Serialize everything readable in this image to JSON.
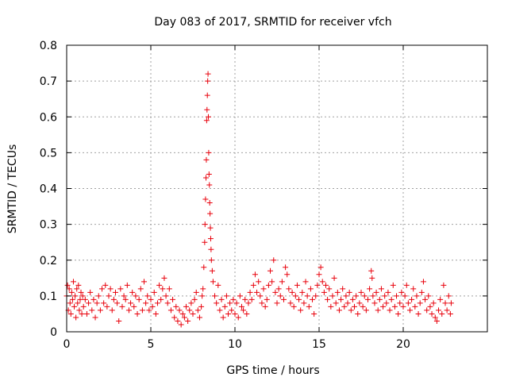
{
  "chart_data": {
    "type": "scatter",
    "title": "Day 083 of 2017, SRMTID for receiver vfch",
    "xlabel": "GPS time / hours",
    "ylabel": "SRMTID / TECUs",
    "xlim": [
      0,
      25
    ],
    "ylim": [
      0,
      0.8
    ],
    "xticks": [
      0,
      5,
      10,
      15,
      20
    ],
    "xtick_labels": [
      "0",
      "5",
      "10",
      "15",
      "20"
    ],
    "yticks": [
      0,
      0.1,
      0.2,
      0.3,
      0.4,
      0.5,
      0.6,
      0.7,
      0.8
    ],
    "ytick_labels": [
      "0",
      "0.1",
      "0.2",
      "0.3",
      "0.4",
      "0.5",
      "0.6",
      "0.7",
      "0.8"
    ],
    "grid": true,
    "marker": "+",
    "color": "#e8000b",
    "series": [
      {
        "name": "SRMTID",
        "points": [
          [
            0.0,
            0.1
          ],
          [
            0.05,
            0.13
          ],
          [
            0.1,
            0.06
          ],
          [
            0.15,
            0.12
          ],
          [
            0.2,
            0.08
          ],
          [
            0.25,
            0.05
          ],
          [
            0.3,
            0.11
          ],
          [
            0.35,
            0.09
          ],
          [
            0.4,
            0.14
          ],
          [
            0.45,
            0.07
          ],
          [
            0.5,
            0.1
          ],
          [
            0.55,
            0.04
          ],
          [
            0.6,
            0.12
          ],
          [
            0.65,
            0.08
          ],
          [
            0.7,
            0.13
          ],
          [
            0.75,
            0.06
          ],
          [
            0.8,
            0.09
          ],
          [
            0.85,
            0.11
          ],
          [
            0.9,
            0.05
          ],
          [
            0.95,
            0.1
          ],
          [
            1.0,
            0.07
          ],
          [
            1.1,
            0.09
          ],
          [
            1.2,
            0.05
          ],
          [
            1.3,
            0.08
          ],
          [
            1.4,
            0.11
          ],
          [
            1.5,
            0.06
          ],
          [
            1.6,
            0.09
          ],
          [
            1.7,
            0.04
          ],
          [
            1.8,
            0.08
          ],
          [
            1.9,
            0.1
          ],
          [
            2.0,
            0.06
          ],
          [
            2.1,
            0.12
          ],
          [
            2.2,
            0.08
          ],
          [
            2.3,
            0.13
          ],
          [
            2.4,
            0.07
          ],
          [
            2.5,
            0.1
          ],
          [
            2.6,
            0.12
          ],
          [
            2.7,
            0.06
          ],
          [
            2.8,
            0.09
          ],
          [
            2.9,
            0.11
          ],
          [
            3.0,
            0.08
          ],
          [
            3.1,
            0.03
          ],
          [
            3.2,
            0.12
          ],
          [
            3.3,
            0.07
          ],
          [
            3.4,
            0.1
          ],
          [
            3.5,
            0.09
          ],
          [
            3.6,
            0.13
          ],
          [
            3.7,
            0.06
          ],
          [
            3.8,
            0.08
          ],
          [
            3.9,
            0.11
          ],
          [
            4.0,
            0.07
          ],
          [
            4.1,
            0.1
          ],
          [
            4.2,
            0.05
          ],
          [
            4.3,
            0.09
          ],
          [
            4.4,
            0.12
          ],
          [
            4.5,
            0.06
          ],
          [
            4.6,
            0.14
          ],
          [
            4.7,
            0.08
          ],
          [
            4.8,
            0.1
          ],
          [
            4.9,
            0.06
          ],
          [
            5.0,
            0.09
          ],
          [
            5.1,
            0.07
          ],
          [
            5.2,
            0.11
          ],
          [
            5.3,
            0.05
          ],
          [
            5.4,
            0.08
          ],
          [
            5.5,
            0.13
          ],
          [
            5.6,
            0.09
          ],
          [
            5.7,
            0.12
          ],
          [
            5.8,
            0.15
          ],
          [
            5.9,
            0.1
          ],
          [
            6.0,
            0.08
          ],
          [
            6.1,
            0.12
          ],
          [
            6.2,
            0.06
          ],
          [
            6.3,
            0.09
          ],
          [
            6.4,
            0.04
          ],
          [
            6.5,
            0.07
          ],
          [
            6.6,
            0.03
          ],
          [
            6.7,
            0.06
          ],
          [
            6.8,
            0.02
          ],
          [
            6.9,
            0.05
          ],
          [
            7.0,
            0.04
          ],
          [
            7.1,
            0.07
          ],
          [
            7.2,
            0.03
          ],
          [
            7.3,
            0.06
          ],
          [
            7.4,
            0.08
          ],
          [
            7.5,
            0.05
          ],
          [
            7.6,
            0.09
          ],
          [
            7.7,
            0.11
          ],
          [
            7.8,
            0.06
          ],
          [
            7.9,
            0.04
          ],
          [
            8.0,
            0.07
          ],
          [
            8.05,
            0.1
          ],
          [
            8.1,
            0.12
          ],
          [
            8.15,
            0.18
          ],
          [
            8.2,
            0.25
          ],
          [
            8.22,
            0.3
          ],
          [
            8.25,
            0.37
          ],
          [
            8.28,
            0.43
          ],
          [
            8.3,
            0.48
          ],
          [
            8.32,
            0.59
          ],
          [
            8.34,
            0.62
          ],
          [
            8.36,
            0.66
          ],
          [
            8.38,
            0.7
          ],
          [
            8.4,
            0.72
          ],
          [
            8.42,
            0.6
          ],
          [
            8.44,
            0.5
          ],
          [
            8.46,
            0.44
          ],
          [
            8.48,
            0.41
          ],
          [
            8.5,
            0.36
          ],
          [
            8.52,
            0.33
          ],
          [
            8.54,
            0.29
          ],
          [
            8.56,
            0.26
          ],
          [
            8.58,
            0.23
          ],
          [
            8.6,
            0.2
          ],
          [
            8.65,
            0.17
          ],
          [
            8.7,
            0.14
          ],
          [
            8.8,
            0.1
          ],
          [
            8.9,
            0.08
          ],
          [
            9.0,
            0.13
          ],
          [
            9.1,
            0.06
          ],
          [
            9.2,
            0.09
          ],
          [
            9.3,
            0.04
          ],
          [
            9.4,
            0.07
          ],
          [
            9.5,
            0.1
          ],
          [
            9.6,
            0.05
          ],
          [
            9.7,
            0.08
          ],
          [
            9.8,
            0.06
          ],
          [
            9.9,
            0.09
          ],
          [
            10.0,
            0.05
          ],
          [
            10.1,
            0.08
          ],
          [
            10.2,
            0.04
          ],
          [
            10.3,
            0.1
          ],
          [
            10.4,
            0.07
          ],
          [
            10.5,
            0.06
          ],
          [
            10.6,
            0.09
          ],
          [
            10.7,
            0.05
          ],
          [
            10.8,
            0.08
          ],
          [
            10.9,
            0.11
          ],
          [
            11.0,
            0.09
          ],
          [
            11.1,
            0.13
          ],
          [
            11.2,
            0.16
          ],
          [
            11.3,
            0.11
          ],
          [
            11.4,
            0.14
          ],
          [
            11.5,
            0.1
          ],
          [
            11.6,
            0.08
          ],
          [
            11.7,
            0.12
          ],
          [
            11.8,
            0.07
          ],
          [
            11.9,
            0.09
          ],
          [
            12.0,
            0.13
          ],
          [
            12.1,
            0.17
          ],
          [
            12.2,
            0.14
          ],
          [
            12.3,
            0.2
          ],
          [
            12.4,
            0.11
          ],
          [
            12.5,
            0.08
          ],
          [
            12.6,
            0.12
          ],
          [
            12.7,
            0.1
          ],
          [
            12.8,
            0.14
          ],
          [
            12.9,
            0.09
          ],
          [
            13.0,
            0.18
          ],
          [
            13.1,
            0.16
          ],
          [
            13.2,
            0.12
          ],
          [
            13.3,
            0.08
          ],
          [
            13.4,
            0.11
          ],
          [
            13.5,
            0.07
          ],
          [
            13.6,
            0.1
          ],
          [
            13.7,
            0.13
          ],
          [
            13.8,
            0.09
          ],
          [
            13.9,
            0.06
          ],
          [
            14.0,
            0.11
          ],
          [
            14.1,
            0.08
          ],
          [
            14.2,
            0.14
          ],
          [
            14.3,
            0.1
          ],
          [
            14.4,
            0.07
          ],
          [
            14.5,
            0.12
          ],
          [
            14.6,
            0.09
          ],
          [
            14.7,
            0.05
          ],
          [
            14.8,
            0.1
          ],
          [
            14.9,
            0.13
          ],
          [
            15.0,
            0.16
          ],
          [
            15.1,
            0.18
          ],
          [
            15.2,
            0.14
          ],
          [
            15.3,
            0.11
          ],
          [
            15.4,
            0.13
          ],
          [
            15.5,
            0.09
          ],
          [
            15.6,
            0.12
          ],
          [
            15.7,
            0.07
          ],
          [
            15.8,
            0.1
          ],
          [
            15.9,
            0.15
          ],
          [
            16.0,
            0.08
          ],
          [
            16.1,
            0.11
          ],
          [
            16.2,
            0.06
          ],
          [
            16.3,
            0.09
          ],
          [
            16.4,
            0.12
          ],
          [
            16.5,
            0.07
          ],
          [
            16.6,
            0.1
          ],
          [
            16.7,
            0.08
          ],
          [
            16.8,
            0.11
          ],
          [
            16.9,
            0.06
          ],
          [
            17.0,
            0.09
          ],
          [
            17.1,
            0.07
          ],
          [
            17.2,
            0.1
          ],
          [
            17.3,
            0.05
          ],
          [
            17.4,
            0.08
          ],
          [
            17.5,
            0.11
          ],
          [
            17.6,
            0.07
          ],
          [
            17.7,
            0.1
          ],
          [
            17.8,
            0.06
          ],
          [
            17.9,
            0.09
          ],
          [
            18.0,
            0.12
          ],
          [
            18.1,
            0.17
          ],
          [
            18.15,
            0.15
          ],
          [
            18.2,
            0.1
          ],
          [
            18.3,
            0.08
          ],
          [
            18.4,
            0.11
          ],
          [
            18.5,
            0.06
          ],
          [
            18.6,
            0.09
          ],
          [
            18.7,
            0.12
          ],
          [
            18.8,
            0.07
          ],
          [
            18.9,
            0.1
          ],
          [
            19.0,
            0.08
          ],
          [
            19.1,
            0.11
          ],
          [
            19.2,
            0.06
          ],
          [
            19.3,
            0.09
          ],
          [
            19.4,
            0.13
          ],
          [
            19.5,
            0.07
          ],
          [
            19.6,
            0.1
          ],
          [
            19.7,
            0.05
          ],
          [
            19.8,
            0.08
          ],
          [
            19.9,
            0.11
          ],
          [
            20.0,
            0.07
          ],
          [
            20.1,
            0.1
          ],
          [
            20.2,
            0.13
          ],
          [
            20.3,
            0.08
          ],
          [
            20.4,
            0.06
          ],
          [
            20.5,
            0.09
          ],
          [
            20.6,
            0.12
          ],
          [
            20.7,
            0.07
          ],
          [
            20.8,
            0.1
          ],
          [
            20.9,
            0.05
          ],
          [
            21.0,
            0.08
          ],
          [
            21.1,
            0.11
          ],
          [
            21.2,
            0.14
          ],
          [
            21.3,
            0.09
          ],
          [
            21.4,
            0.06
          ],
          [
            21.5,
            0.1
          ],
          [
            21.6,
            0.07
          ],
          [
            21.7,
            0.05
          ],
          [
            21.8,
            0.08
          ],
          [
            21.9,
            0.04
          ],
          [
            22.0,
            0.03
          ],
          [
            22.1,
            0.06
          ],
          [
            22.2,
            0.09
          ],
          [
            22.3,
            0.05
          ],
          [
            22.4,
            0.13
          ],
          [
            22.5,
            0.08
          ],
          [
            22.6,
            0.06
          ],
          [
            22.7,
            0.1
          ],
          [
            22.8,
            0.05
          ],
          [
            22.85,
            0.08
          ]
        ]
      }
    ]
  }
}
